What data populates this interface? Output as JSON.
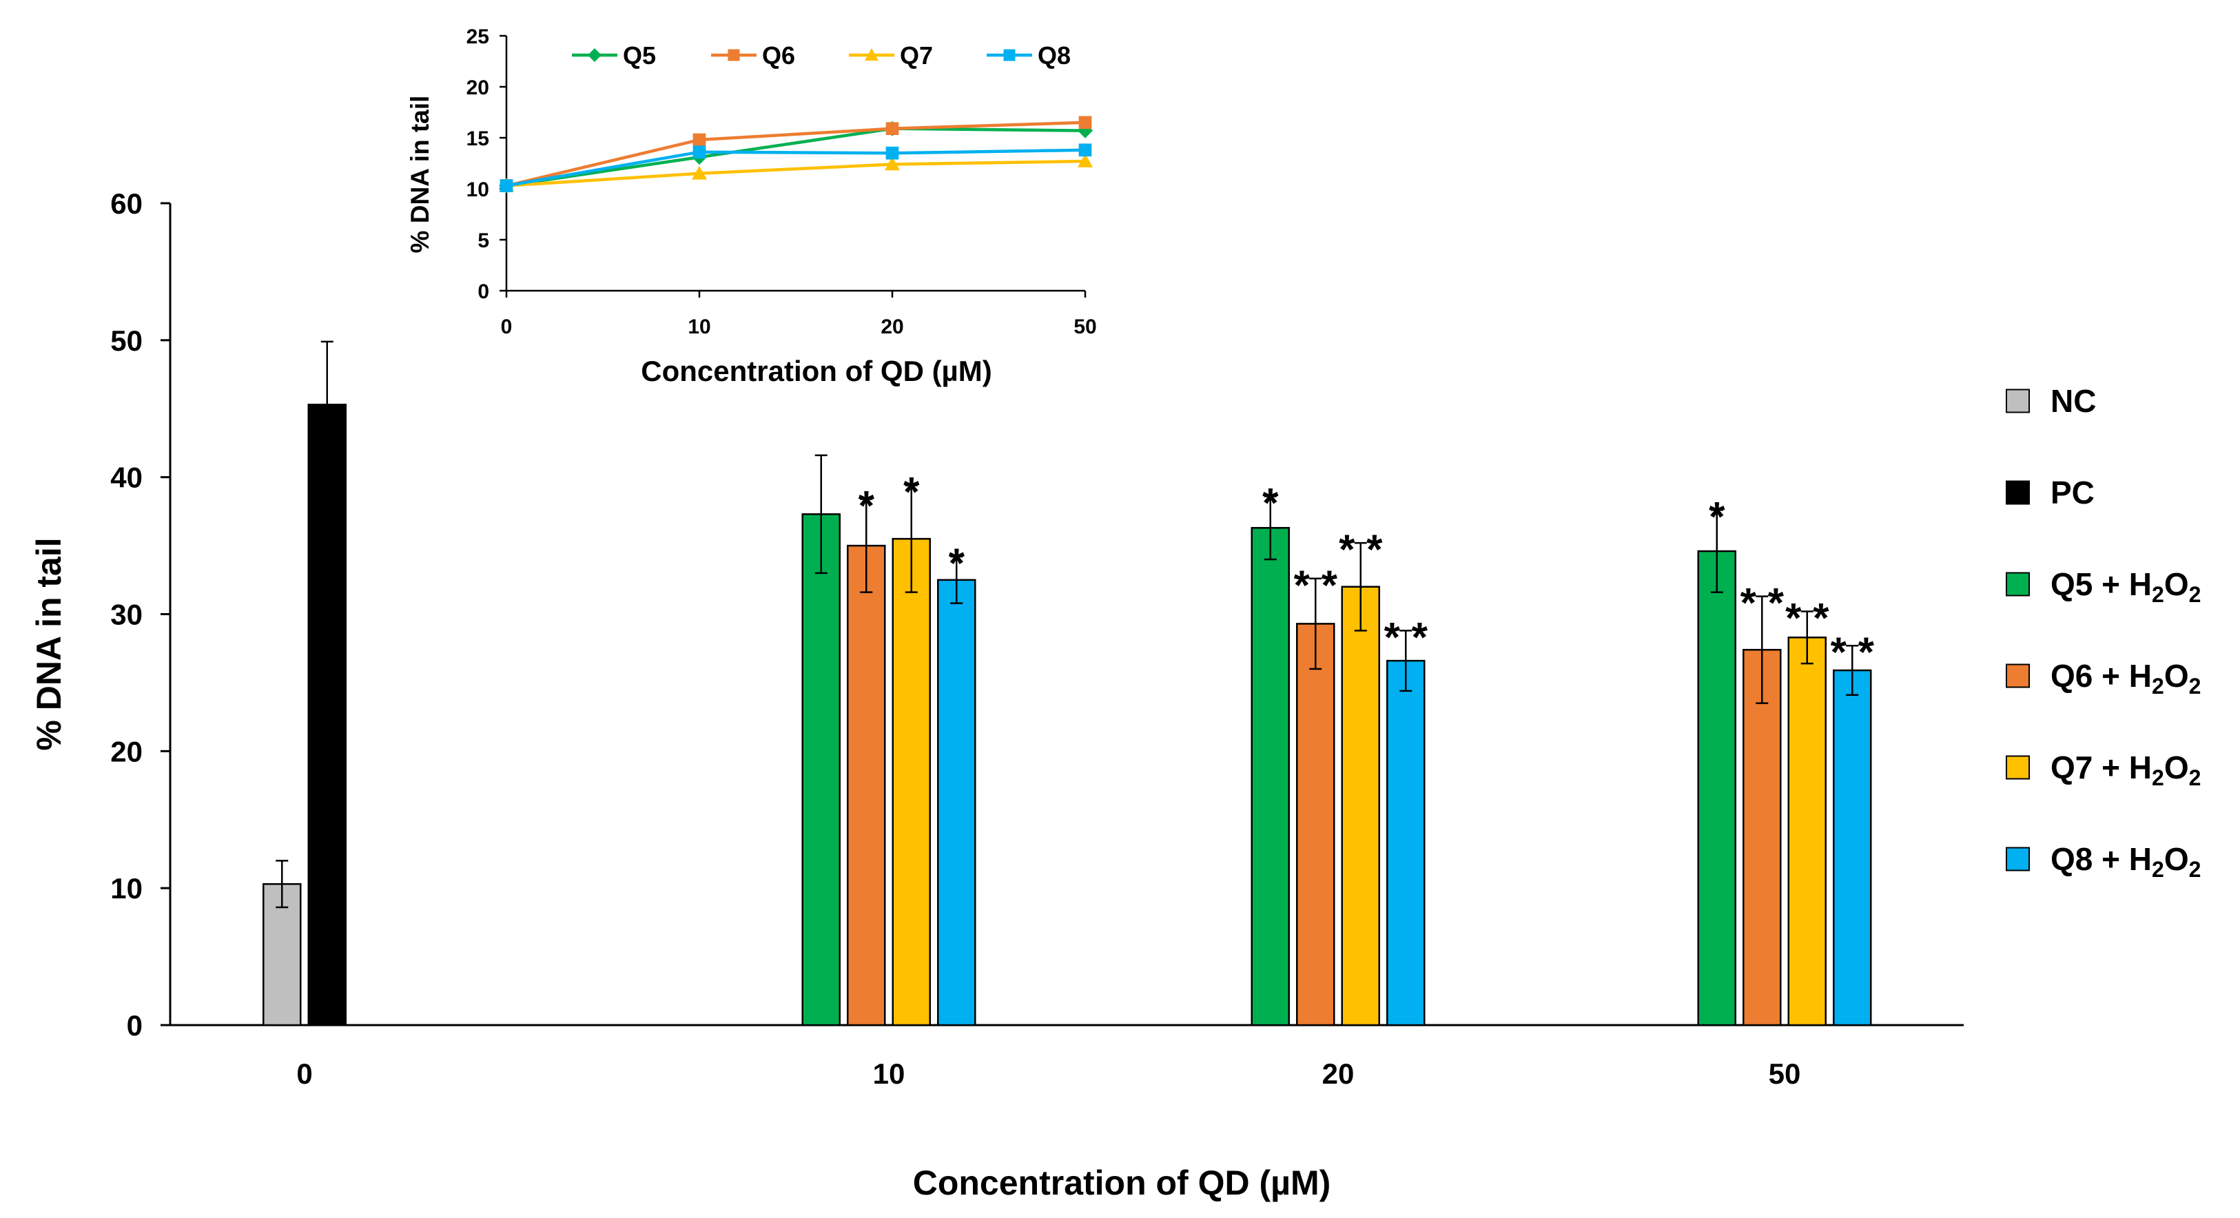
{
  "chart_data": [
    {
      "type": "bar",
      "xlabel": "Concentration of QD (µM)",
      "ylabel": "%  DNA in tail",
      "ylim": [
        0,
        60
      ],
      "yticks": [
        "0",
        "10",
        "20",
        "30",
        "40",
        "50",
        "60"
      ],
      "legend_position": "right",
      "groups": [
        {
          "category": "0",
          "bars": [
            {
              "series": "NC",
              "value": 10.3,
              "error": 1.7,
              "sig": ""
            },
            {
              "series": "PC",
              "value": 45.3,
              "error": 4.6,
              "sig": ""
            }
          ]
        },
        {
          "category": "10",
          "bars": [
            {
              "series": "Q5 + H2O2",
              "value": 37.3,
              "error": 4.3,
              "sig": ""
            },
            {
              "series": "Q6 + H2O2",
              "value": 35.0,
              "error": 3.4,
              "sig": "*"
            },
            {
              "series": "Q7 + H2O2",
              "value": 35.5,
              "error": 3.9,
              "sig": "*"
            },
            {
              "series": "Q8 + H2O2",
              "value": 32.5,
              "error": 1.7,
              "sig": "*"
            }
          ]
        },
        {
          "category": "20",
          "bars": [
            {
              "series": "Q5 + H2O2",
              "value": 36.3,
              "error": 2.3,
              "sig": "*"
            },
            {
              "series": "Q6 + H2O2",
              "value": 29.3,
              "error": 3.3,
              "sig": "**"
            },
            {
              "series": "Q7 + H2O2",
              "value": 32.0,
              "error": 3.2,
              "sig": "**"
            },
            {
              "series": "Q8 + H2O2",
              "value": 26.6,
              "error": 2.2,
              "sig": "**"
            }
          ]
        },
        {
          "category": "50",
          "bars": [
            {
              "series": "Q5 + H2O2",
              "value": 34.6,
              "error": 3.0,
              "sig": "*"
            },
            {
              "series": "Q6 + H2O2",
              "value": 27.4,
              "error": 3.9,
              "sig": "**"
            },
            {
              "series": "Q7 + H2O2",
              "value": 28.3,
              "error": 1.9,
              "sig": "**"
            },
            {
              "series": "Q8 + H2O2",
              "value": 25.9,
              "error": 1.8,
              "sig": "**"
            }
          ]
        }
      ],
      "legend": [
        {
          "series": "NC",
          "label": "NC",
          "formula": false,
          "color": "#bfbfbf"
        },
        {
          "series": "PC",
          "label": "PC",
          "formula": false,
          "color": "#000000"
        },
        {
          "series": "Q5 + H2O2",
          "label": "Q5 + H",
          "formula": true,
          "sub1": "2",
          "mid": "O",
          "sub2": "2",
          "color": "#00b050"
        },
        {
          "series": "Q6 + H2O2",
          "label": "Q6 + H",
          "formula": true,
          "sub1": "2",
          "mid": "O",
          "sub2": "2",
          "color": "#ed7d31"
        },
        {
          "series": "Q7 + H2O2",
          "label": "Q7 + H",
          "formula": true,
          "sub1": "2",
          "mid": "O",
          "sub2": "2",
          "color": "#ffc000"
        },
        {
          "series": "Q8 + H2O2",
          "label": "Q8 + H",
          "formula": true,
          "sub1": "2",
          "mid": "O",
          "sub2": "2",
          "color": "#00b0f0"
        }
      ]
    },
    {
      "type": "line",
      "title": "inset",
      "xlabel": "Concentration of QD (µM)",
      "ylabel": "% DNA in tail",
      "categories": [
        "0",
        "10",
        "20",
        "50"
      ],
      "ylim": [
        0,
        25
      ],
      "yticks": [
        "0",
        "5",
        "10",
        "15",
        "20",
        "25"
      ],
      "legend_position": "top",
      "series": [
        {
          "name": "Q5",
          "marker": "diamond",
          "color": "#00b050",
          "values": [
            10.3,
            13.1,
            15.9,
            15.7
          ]
        },
        {
          "name": "Q6",
          "marker": "square",
          "color": "#ed7d31",
          "values": [
            10.3,
            14.8,
            15.9,
            16.5
          ]
        },
        {
          "name": "Q7",
          "marker": "triangle",
          "color": "#ffc000",
          "values": [
            10.3,
            11.5,
            12.4,
            12.7
          ]
        },
        {
          "name": "Q8",
          "marker": "square",
          "color": "#00b0f0",
          "values": [
            10.3,
            13.6,
            13.5,
            13.8
          ]
        }
      ]
    }
  ]
}
